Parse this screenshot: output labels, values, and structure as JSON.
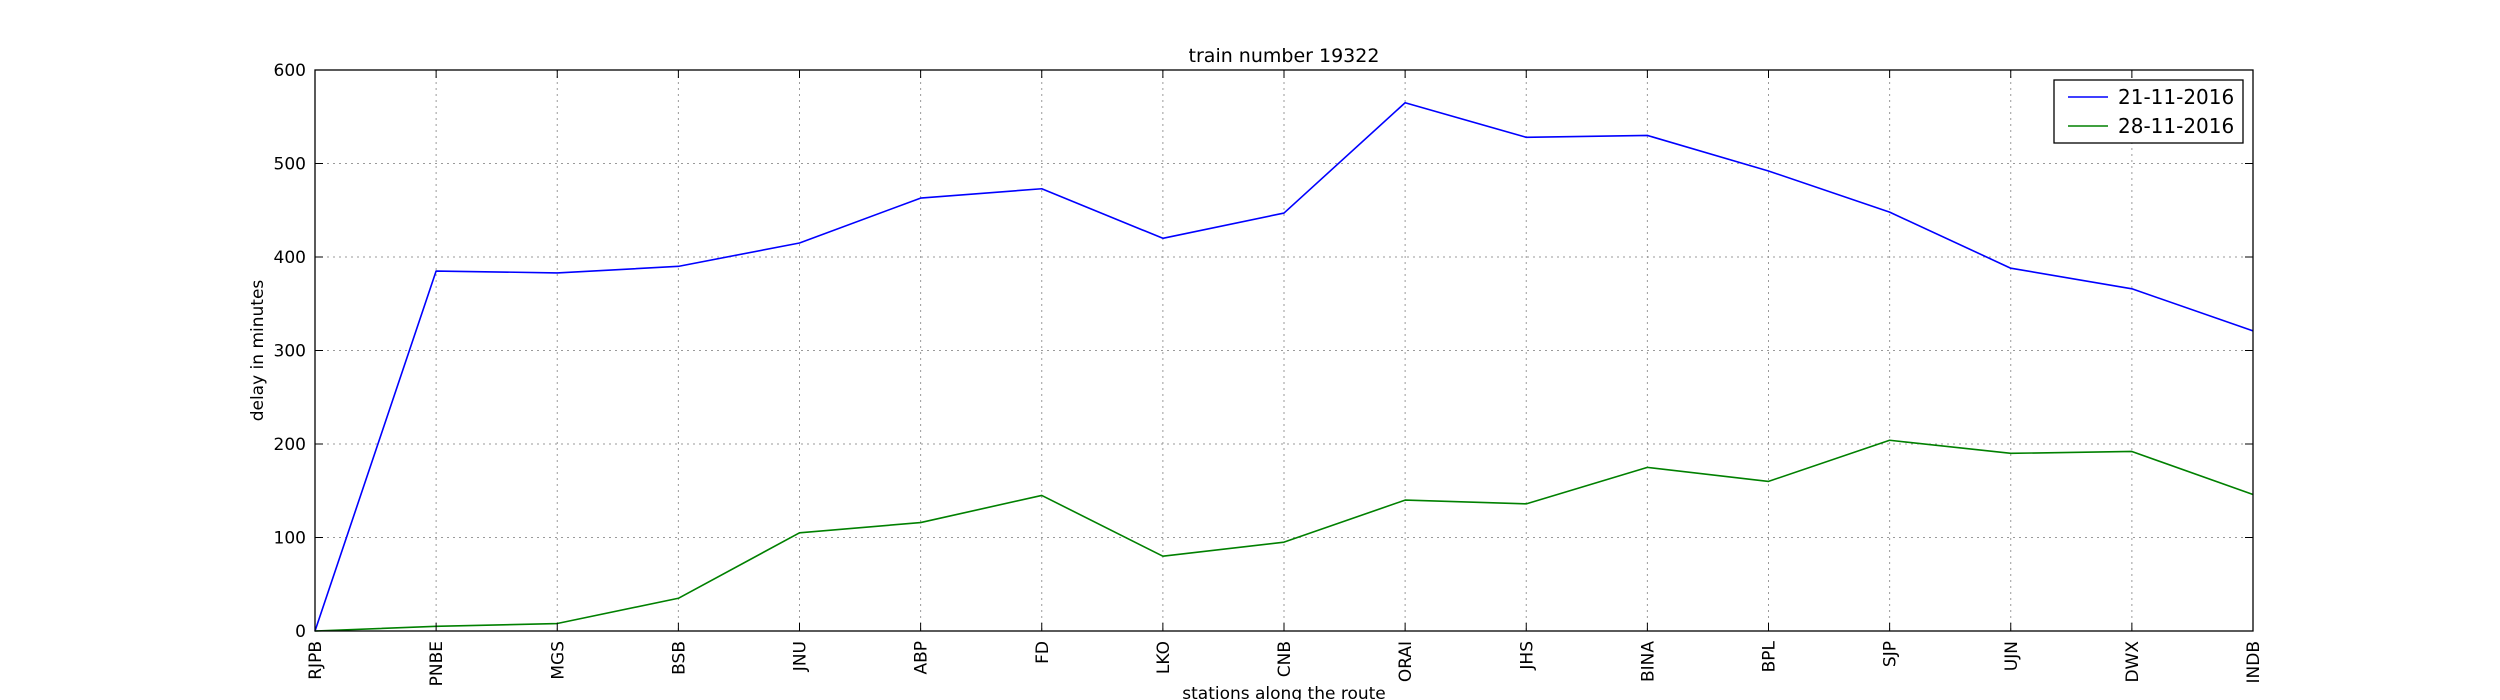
{
  "chart_data": {
    "type": "line",
    "title": "train number 19322",
    "xlabel": "stations along the route",
    "ylabel": "delay in minutes",
    "categories": [
      "RJPB",
      "PNBE",
      "MGS",
      "BSB",
      "JNU",
      "ABP",
      "FD",
      "LKO",
      "CNB",
      "ORAI",
      "JHS",
      "BINA",
      "BPL",
      "SJP",
      "UJN",
      "DWX",
      "INDB"
    ],
    "ylim": [
      0,
      600
    ],
    "yticks": [
      0,
      100,
      200,
      300,
      400,
      500,
      600
    ],
    "grid": true,
    "legend_position": "top-right",
    "series": [
      {
        "name": "21-11-2016",
        "color": "#0000ff",
        "values": [
          0,
          385,
          383,
          390,
          415,
          463,
          473,
          420,
          447,
          565,
          528,
          530,
          492,
          448,
          388,
          366,
          321
        ]
      },
      {
        "name": "28-11-2016",
        "color": "#008000",
        "values": [
          0,
          5,
          8,
          35,
          105,
          116,
          145,
          80,
          95,
          140,
          136,
          175,
          160,
          204,
          190,
          192,
          146
        ]
      }
    ]
  }
}
